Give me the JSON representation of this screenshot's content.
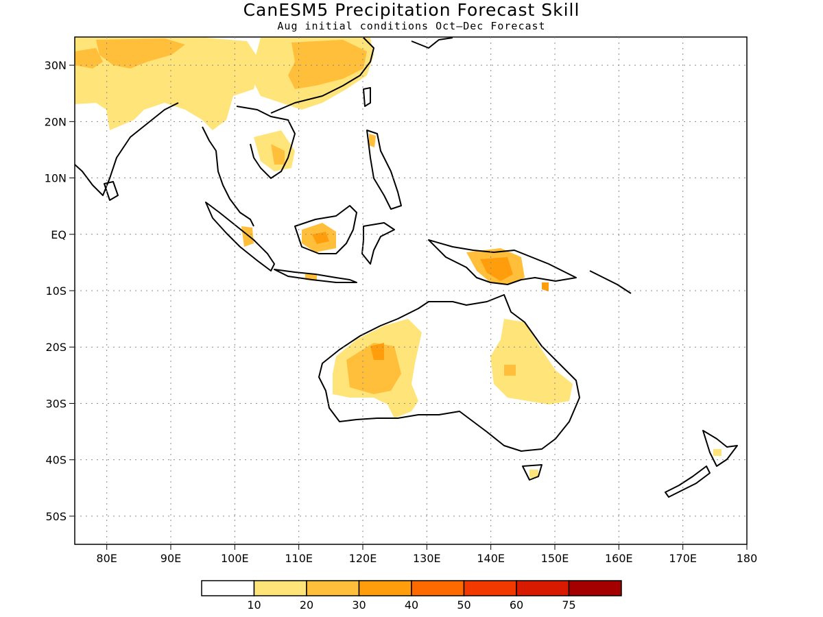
{
  "title": "CanESM5 Precipitation Forecast Skill",
  "subtitle": "Aug initial conditions  Oct–Dec Forecast",
  "map": {
    "lon_range": [
      75,
      180
    ],
    "lat_range": [
      -55,
      35
    ],
    "lon_ticks": [
      "80E",
      "90E",
      "100E",
      "110E",
      "120E",
      "130E",
      "140E",
      "150E",
      "160E",
      "170E",
      "180"
    ],
    "lat_ticks": [
      "30N",
      "20N",
      "10N",
      "EQ",
      "10S",
      "20S",
      "30S",
      "40S",
      "50S"
    ],
    "grid_lines": "dotted"
  },
  "colorbar": {
    "labels": [
      "10",
      "20",
      "30",
      "40",
      "50",
      "60",
      "75"
    ],
    "colors": [
      "#ffffff",
      "#ffe47a",
      "#ffbf3a",
      "#ff9d0c",
      "#ff6a00",
      "#f23a00",
      "#d81b00",
      "#a50000"
    ]
  }
}
